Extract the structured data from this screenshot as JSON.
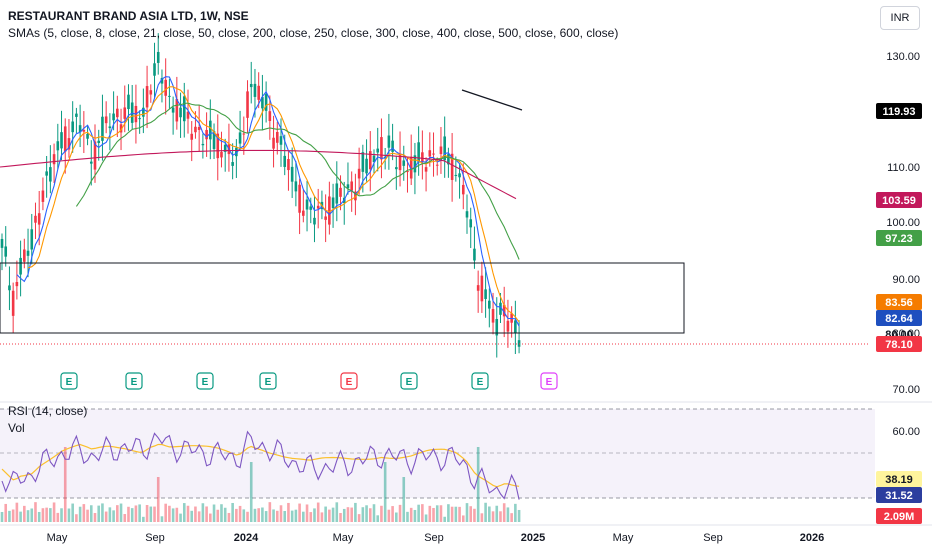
{
  "header": {
    "title": "RESTAURANT BRAND ASIA LTD, 1W, NSE",
    "indicators": "SMAs (5, close, 8, close, 21, close, 50, close, 200, close, 250, close, 300, close, 400, close, 500, close, 600, close)",
    "currency": "INR"
  },
  "panes": {
    "rsi_title": "RSI (14, close)",
    "vol_title": "Vol"
  },
  "chart_data": {
    "type": "candlestick",
    "price_ticks": [
      "130.00",
      "110.00",
      "100.00",
      "90.00",
      "80.00",
      "70.00"
    ],
    "rsi_ticks": [
      "60.00"
    ],
    "x_ticks": [
      "May",
      "Sep",
      "2024",
      "May",
      "Sep",
      "2025",
      "May",
      "Sep",
      "2026"
    ],
    "price_range": [
      66,
      137
    ],
    "labels": {
      "sma_long": {
        "text": "119.93",
        "bg": "#000000",
        "fg": "#ffffff"
      },
      "sma_mid": {
        "text": "103.59",
        "bg": "#c2185b",
        "fg": "#ffffff"
      },
      "sma_21": {
        "text": "97.23",
        "bg": "#43a047",
        "fg": "#ffffff"
      },
      "sma_8": {
        "text": "83.56",
        "bg": "#f57c00",
        "fg": "#ffffff"
      },
      "sma_5": {
        "text": "82.64",
        "bg": "#1e4fbf",
        "fg": "#ffffff"
      },
      "price_80": {
        "text": "80.00",
        "bg": "#ffffff",
        "fg": "#131722"
      },
      "last": {
        "text": "78.10",
        "bg": "#f23645",
        "fg": "#ffffff"
      },
      "rsi_ma": {
        "text": "38.19",
        "bg": "#fff59d",
        "fg": "#131722"
      },
      "rsi": {
        "text": "31.52",
        "bg": "#2c3e9f",
        "fg": "#ffffff"
      },
      "volume": {
        "text": "2.09M",
        "bg": "#f23645",
        "fg": "#ffffff"
      }
    },
    "earnings_markers": [
      {
        "label": "E",
        "color": "#089981"
      },
      {
        "label": "E",
        "color": "#089981"
      },
      {
        "label": "E",
        "color": "#089981"
      },
      {
        "label": "E",
        "color": "#089981"
      },
      {
        "label": "E",
        "color": "#f23645"
      },
      {
        "label": "E",
        "color": "#089981"
      },
      {
        "label": "E",
        "color": "#089981"
      },
      {
        "label": "E",
        "color": "#e040fb"
      }
    ],
    "colors": {
      "up": "#089981",
      "down": "#f23645",
      "sma5": "#2962ff",
      "sma8": "#ff9800",
      "sma21": "#43a047",
      "sma200": "#c2185b",
      "rsi": "#7e57c2",
      "rsi_ma": "#fbc02d"
    }
  }
}
